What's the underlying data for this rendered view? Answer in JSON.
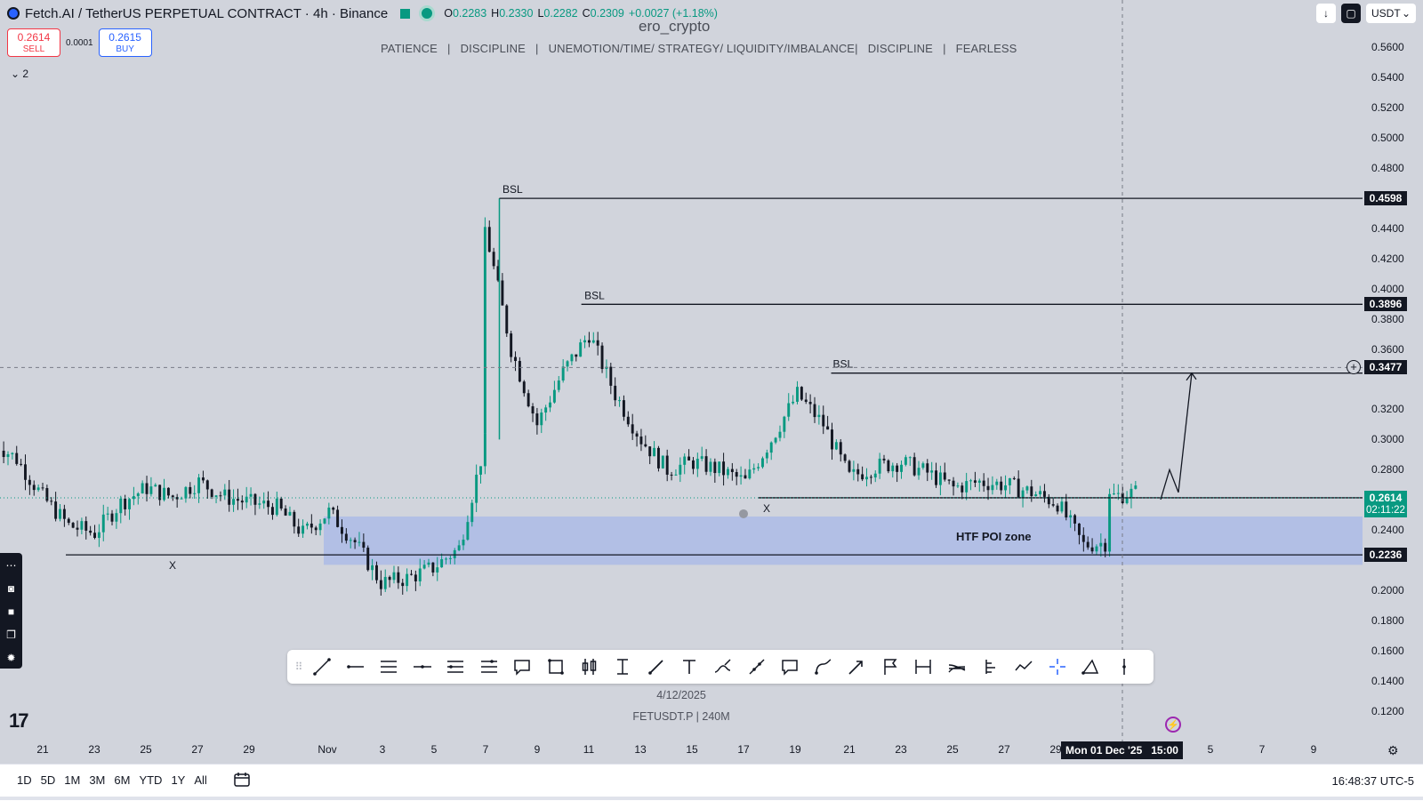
{
  "header": {
    "symbol_title": "Fetch.AI / TetherUS PERPETUAL CONTRACT · 4h · Binance",
    "ohlc": {
      "o_label": "O",
      "o": "0.2283",
      "h_label": "H",
      "h": "0.2330",
      "l_label": "L",
      "l": "0.2282",
      "c_label": "C",
      "c": "0.2309",
      "change": "+0.0027 (+1.18%)"
    },
    "watermark": "ero_crypto",
    "sell_price": "0.2614",
    "sell_label": "SELL",
    "spread": "0.0001",
    "buy_price": "0.2615",
    "buy_label": "BUY",
    "indicators_toggle": "2",
    "motto": "PATIENCE   |   DISCIPLINE   |   UNEMOTION/TIME/ STRATEGY/ LIQUIDITY/IMBALANCE|   DISCIPLINE   |   FEARLESS",
    "currency": "USDT"
  },
  "colors": {
    "up": "#089981",
    "down": "#131722",
    "background": "#d1d4dc",
    "zone": "#aebde6"
  },
  "price_axis": {
    "labels": [
      "0.5600",
      "0.5400",
      "0.5200",
      "0.5000",
      "0.4800",
      "0.4400",
      "0.4200",
      "0.4000",
      "0.3800",
      "0.3600",
      "0.3200",
      "0.3000",
      "0.2800",
      "0.2400",
      "0.2000",
      "0.1800",
      "0.1600",
      "0.1400",
      "0.1200"
    ],
    "tags": {
      "bsl1": "0.4598",
      "bsl2": "0.3896",
      "crosshair": "0.3477",
      "last": "0.2614",
      "countdown": "02:11:22",
      "poi_low": "0.2236"
    }
  },
  "annotations": {
    "bsl": "BSL",
    "x_mark": "X",
    "zone_label": "HTF POI zone"
  },
  "time_axis": {
    "ticks": [
      "21",
      "23",
      "25",
      "27",
      "29",
      "Nov",
      "3",
      "5",
      "7",
      "9",
      "11",
      "13",
      "15",
      "17",
      "19",
      "21",
      "23",
      "25",
      "27",
      "29",
      "5",
      "7",
      "9"
    ],
    "crosshair_date": "Mon 01 Dec '25   15:00"
  },
  "bottom_info": {
    "date": "4/12/2025",
    "symbol_line": "FETUSDT.P | 240M"
  },
  "drawing_tools": [
    "trend-line",
    "horizontal-ray",
    "parallel-channel",
    "horizontal-line",
    "fib-retracement",
    "gann-box",
    "callout",
    "rectangle",
    "long-position",
    "price-range",
    "arrow",
    "text",
    "brush",
    "path",
    "note",
    "curve",
    "arrow-marker",
    "flag",
    "date-range",
    "fib-fan",
    "pitchfork",
    "polyline",
    "crosshair",
    "shape",
    "vertical-line"
  ],
  "footer": {
    "ranges": [
      "1D",
      "5D",
      "1M",
      "3M",
      "6M",
      "YTD",
      "1Y",
      "All"
    ],
    "clock": "16:48:37 UTC-5"
  },
  "chart_data": {
    "type": "candlestick",
    "title": "Fetch.AI / TetherUS PERPETUAL CONTRACT · 4h · Binance",
    "x_start": "Oct 19",
    "x_end": "Dec 03",
    "ylim": [
      0.11,
      0.57
    ],
    "approx_close_path": [
      [
        "Oct 19",
        0.3
      ],
      [
        "Oct 20",
        0.287
      ],
      [
        "Oct 21",
        0.262
      ],
      [
        "Oct 22",
        0.243
      ],
      [
        "Oct 23",
        0.238
      ],
      [
        "Oct 24",
        0.258
      ],
      [
        "Oct 25",
        0.268
      ],
      [
        "Oct 26",
        0.262
      ],
      [
        "Oct 27",
        0.272
      ],
      [
        "Oct 28",
        0.262
      ],
      [
        "Oct 29",
        0.258
      ],
      [
        "Oct 30",
        0.255
      ],
      [
        "Oct 31",
        0.238
      ],
      [
        "Nov 01",
        0.252
      ],
      [
        "Nov 02",
        0.232
      ],
      [
        "Nov 03",
        0.205
      ],
      [
        "Nov 04",
        0.208
      ],
      [
        "Nov 05",
        0.215
      ],
      [
        "Nov 06",
        0.228
      ],
      [
        "Nov 07",
        0.298
      ],
      [
        "Nov 07",
        0.44
      ],
      [
        "Nov 08",
        0.36
      ],
      [
        "Nov 09",
        0.31
      ],
      [
        "Nov 10",
        0.345
      ],
      [
        "Nov 11",
        0.37
      ],
      [
        "Nov 12",
        0.33
      ],
      [
        "Nov 13",
        0.3
      ],
      [
        "Nov 14",
        0.28
      ],
      [
        "Nov 15",
        0.285
      ],
      [
        "Nov 16",
        0.28
      ],
      [
        "Nov 17",
        0.272
      ],
      [
        "Nov 18",
        0.3
      ],
      [
        "Nov 19",
        0.33
      ],
      [
        "Nov 20",
        0.31
      ],
      [
        "Nov 21",
        0.275
      ],
      [
        "Nov 22",
        0.282
      ],
      [
        "Nov 23",
        0.285
      ],
      [
        "Nov 24",
        0.278
      ],
      [
        "Nov 25",
        0.268
      ],
      [
        "Nov 26",
        0.272
      ],
      [
        "Nov 27",
        0.27
      ],
      [
        "Nov 28",
        0.265
      ],
      [
        "Nov 29",
        0.258
      ],
      [
        "Nov 30",
        0.23
      ],
      [
        "Dec 01",
        0.232
      ],
      [
        "Dec 01",
        0.262
      ],
      [
        "Dec 02",
        0.265
      ]
    ],
    "levels": [
      {
        "label": "BSL",
        "price": 0.4598
      },
      {
        "label": "BSL",
        "price": 0.3896
      },
      {
        "label": "BSL",
        "price": 0.344
      },
      {
        "label": "X",
        "price": 0.2614
      },
      {
        "label": "X",
        "price": 0.2236
      }
    ],
    "zone": {
      "label": "HTF POI zone",
      "price_from": 0.217,
      "price_to": 0.249
    },
    "projection_target": 0.344,
    "last_price": 0.2614
  }
}
